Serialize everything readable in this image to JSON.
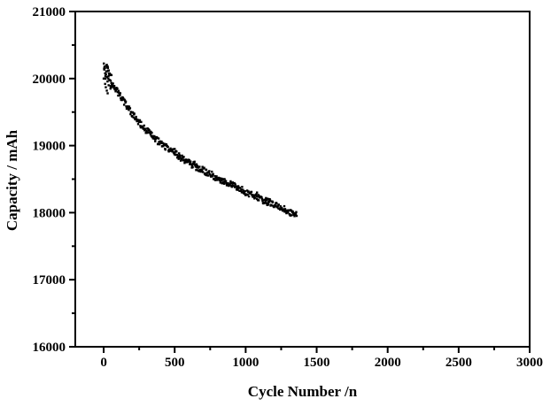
{
  "chart_data": {
    "type": "scatter",
    "title": "",
    "xlabel": "Cycle Number /n",
    "ylabel": "Capacity / mAh",
    "xlim": [
      -200,
      3000
    ],
    "ylim": [
      16000,
      21000
    ],
    "x_ticks": [
      0,
      500,
      1000,
      1500,
      2000,
      2500,
      3000
    ],
    "x_minor_step": 250,
    "y_ticks": [
      16000,
      17000,
      18000,
      19000,
      20000,
      21000
    ],
    "y_minor_step": 500,
    "grid": false,
    "legend": "none",
    "marker": "square",
    "marker_size_px": 2.4,
    "color": "#000000",
    "frame_color": "#000000",
    "background": "#ffffff",
    "series": [
      {
        "name": "capacity",
        "anchors": [
          [
            0,
            20120
          ],
          [
            8,
            20160
          ],
          [
            16,
            20060
          ],
          [
            24,
            20110
          ],
          [
            32,
            20020
          ],
          [
            40,
            19990
          ],
          [
            50,
            19970
          ],
          [
            60,
            19940
          ],
          [
            75,
            19880
          ],
          [
            90,
            19830
          ],
          [
            110,
            19760
          ],
          [
            130,
            19700
          ],
          [
            150,
            19630
          ],
          [
            175,
            19550
          ],
          [
            200,
            19470
          ],
          [
            230,
            19390
          ],
          [
            260,
            19320
          ],
          [
            290,
            19250
          ],
          [
            320,
            19190
          ],
          [
            350,
            19130
          ],
          [
            380,
            19070
          ],
          [
            410,
            19020
          ],
          [
            440,
            18980
          ],
          [
            470,
            18930
          ],
          [
            500,
            18890
          ],
          [
            540,
            18830
          ],
          [
            580,
            18770
          ],
          [
            620,
            18720
          ],
          [
            660,
            18670
          ],
          [
            700,
            18630
          ],
          [
            740,
            18590
          ],
          [
            780,
            18540
          ],
          [
            820,
            18500
          ],
          [
            860,
            18460
          ],
          [
            900,
            18420
          ],
          [
            940,
            18370
          ],
          [
            980,
            18330
          ],
          [
            1020,
            18290
          ],
          [
            1060,
            18250
          ],
          [
            1100,
            18210
          ],
          [
            1140,
            18170
          ],
          [
            1170,
            18150
          ],
          [
            1200,
            18110
          ],
          [
            1240,
            18080
          ],
          [
            1280,
            18040
          ],
          [
            1310,
            18010
          ],
          [
            1340,
            17985
          ],
          [
            1360,
            17965
          ]
        ],
        "outliers": [
          [
            10,
            19920
          ],
          [
            15,
            19870
          ],
          [
            22,
            19820
          ],
          [
            28,
            19780
          ],
          [
            35,
            19900
          ],
          [
            48,
            19850
          ],
          [
            330,
            19165
          ],
          [
            500,
            18950
          ],
          [
            640,
            18760
          ],
          [
            1080,
            18300
          ],
          [
            1160,
            18120
          ]
        ],
        "scatter_noise_mAh": 50,
        "early_cluster": {
          "until_cycle": 55,
          "noise_mAh": 120
        },
        "cycle_step": 3,
        "first_cycle": 0,
        "last_cycle": 1360
      }
    ]
  }
}
